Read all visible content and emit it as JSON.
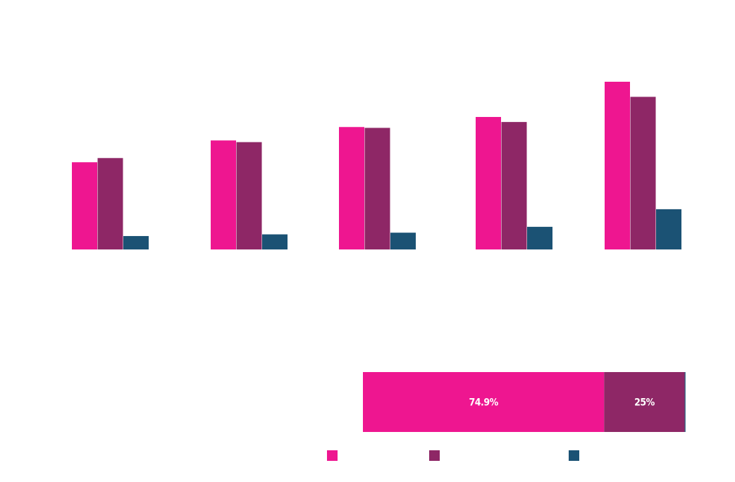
{
  "colors": {
    "pink": "#ee1690",
    "purple": "#8e2766",
    "navy": "#1b5274",
    "background": "#ffffff"
  },
  "chart_data": [
    {
      "type": "bar",
      "title": "",
      "xlabel": "",
      "ylabel": "",
      "categories": [
        "",
        "",
        "",
        "",
        ""
      ],
      "ylim": [
        0,
        100
      ],
      "grid": false,
      "series": [
        {
          "color": "#ee1690",
          "values": [
            52,
            65,
            73,
            79,
            100
          ]
        },
        {
          "color": "#8e2766",
          "values": [
            54.5,
            64,
            72.5,
            76,
            91
          ]
        },
        {
          "color": "#1b5274",
          "values": [
            8,
            9,
            10,
            13.5,
            24
          ]
        }
      ]
    },
    {
      "type": "bar",
      "orientation": "horizontal",
      "stacked": true,
      "title": "",
      "segments": [
        {
          "color": "#ee1690",
          "value": 74.9,
          "label": "74.9%"
        },
        {
          "color": "#8e2766",
          "value": 25,
          "label": "25%"
        },
        {
          "color": "#1b5274",
          "value": 0.1,
          "label": ""
        }
      ]
    }
  ],
  "legend": {
    "placement": "bottom",
    "items": [
      {
        "color": "#ee1690",
        "label": ""
      },
      {
        "color": "#8e2766",
        "label": ""
      },
      {
        "color": "#1b5274",
        "label": ""
      }
    ]
  }
}
